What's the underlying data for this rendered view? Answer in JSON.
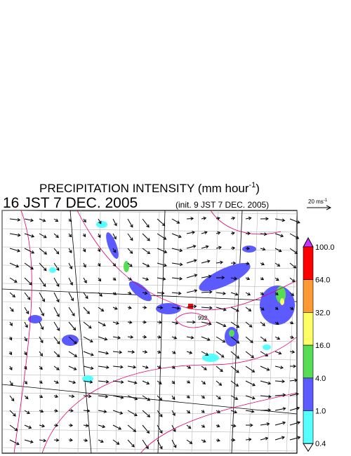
{
  "header": {
    "title": {
      "text": "PRECIPITATION INTENSITY (mm hour",
      "exponent": "-1",
      "close": ")"
    },
    "valid_time": "16 JST 7 DEC. 2005",
    "init_time": "(init. 9 JST 7 DEC. 2005)"
  },
  "wind_scale": {
    "text": "20 ms",
    "exponent": "-1"
  },
  "map": {
    "pressure_label": "992"
  },
  "legend": {
    "levels": [
      "100.0",
      "64.0",
      "32.0",
      "16.0",
      "4.0",
      "1.0",
      "0.4"
    ],
    "colors": [
      "#ff0000",
      "#ff9933",
      "#ffff66",
      "#55dd55",
      "#5b5bff",
      "#55ffff"
    ],
    "over_color": "#cc33ff",
    "under_color": "#ffffff"
  }
}
